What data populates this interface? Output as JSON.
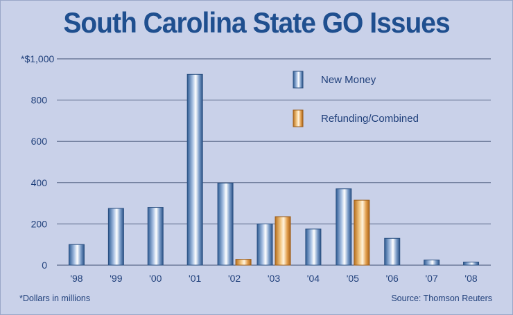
{
  "chart_data": {
    "type": "bar",
    "title": "South Carolina State GO Issues",
    "ylabel": "*$1,000",
    "ylim": [
      0,
      1000
    ],
    "yticks": [
      0,
      200,
      400,
      600,
      800
    ],
    "top_tick_label": "*$1,000",
    "grid": true,
    "legend_position": "top-right",
    "categories": [
      "'98",
      "'99",
      "'00",
      "'01",
      "'02",
      "'03",
      "'04",
      "'05",
      "'06",
      "'07",
      "'08"
    ],
    "series": [
      {
        "name": "New Money",
        "color": "#5b84b8",
        "values": [
          100,
          275,
          280,
          925,
          398,
          200,
          175,
          370,
          130,
          25,
          15
        ]
      },
      {
        "name": "Refunding/Combined",
        "color": "#e8a24c",
        "values": [
          0,
          0,
          0,
          0,
          28,
          235,
          0,
          315,
          0,
          0,
          0
        ]
      }
    ],
    "footnote": "*Dollars in millions",
    "source": "Source: Thomson Reuters"
  }
}
